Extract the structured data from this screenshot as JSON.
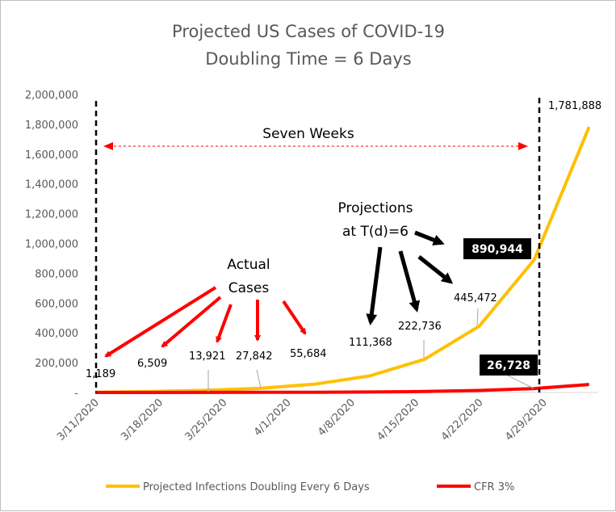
{
  "chart_data": {
    "type": "line",
    "title": "Projected US Cases of COVID-19",
    "subtitle": "Doubling Time = 6 Days",
    "xlabel": "",
    "ylabel": "",
    "x_tick_labels": [
      "3/11/2020",
      "3/18/2020",
      "3/25/2020",
      "4/1/2020",
      "4/8/2020",
      "4/15/2020",
      "4/22/2020",
      "4/29/2020"
    ],
    "y_tick_labels": [
      "-",
      "200,000",
      "400,000",
      "600,000",
      "800,000",
      "1,000,000",
      "1,200,000",
      "1,400,000",
      "1,600,000",
      "1,800,000",
      "2,000,000"
    ],
    "ylim": [
      0,
      2000000
    ],
    "xlim": [
      "3/11/2020",
      "5/5/2020"
    ],
    "grid": false,
    "legend_position": "bottom",
    "series": [
      {
        "name": "Projected Infections Doubling Every 6 Days",
        "color": "#FFC000",
        "points": [
          {
            "x": "3/11/2020",
            "y": 1189
          },
          {
            "x": "3/17/2020",
            "y": 6509
          },
          {
            "x": "3/23/2020",
            "y": 13921
          },
          {
            "x": "3/29/2020",
            "y": 27842
          },
          {
            "x": "4/4/2020",
            "y": 55684
          },
          {
            "x": "4/10/2020",
            "y": 111368
          },
          {
            "x": "4/16/2020",
            "y": 222736
          },
          {
            "x": "4/22/2020",
            "y": 445472
          },
          {
            "x": "4/28/2020",
            "y": 890944
          },
          {
            "x": "5/4/2020",
            "y": 1781888
          }
        ]
      },
      {
        "name": "CFR 3%",
        "color": "#FF0000",
        "points": [
          {
            "x": "3/11/2020",
            "y": 36
          },
          {
            "x": "3/17/2020",
            "y": 195
          },
          {
            "x": "3/23/2020",
            "y": 418
          },
          {
            "x": "3/29/2020",
            "y": 835
          },
          {
            "x": "4/4/2020",
            "y": 1671
          },
          {
            "x": "4/10/2020",
            "y": 3341
          },
          {
            "x": "4/16/2020",
            "y": 6682
          },
          {
            "x": "4/22/2020",
            "y": 13364
          },
          {
            "x": "4/28/2020",
            "y": 26728
          },
          {
            "x": "5/4/2020",
            "y": 53457
          }
        ]
      }
    ],
    "data_labels": [
      {
        "text": "1,189",
        "series": 0,
        "index": 0
      },
      {
        "text": "6,509",
        "series": 0,
        "index": 1
      },
      {
        "text": "13,921",
        "series": 0,
        "index": 2
      },
      {
        "text": "27,842",
        "series": 0,
        "index": 3
      },
      {
        "text": "55,684",
        "series": 0,
        "index": 4
      },
      {
        "text": "111,368",
        "series": 0,
        "index": 5
      },
      {
        "text": "222,736",
        "series": 0,
        "index": 6
      },
      {
        "text": "445,472",
        "series": 0,
        "index": 7
      },
      {
        "text": "890,944",
        "series": 0,
        "index": 8,
        "boxed": true
      },
      {
        "text": "1,781,888",
        "series": 0,
        "index": 9
      },
      {
        "text": "26,728",
        "series": 1,
        "index": 8,
        "boxed": true
      }
    ],
    "annotations": {
      "seven_weeks": "Seven Weeks",
      "actual_cases_line1": "Actual",
      "actual_cases_line2": "Cases",
      "projections_line1": "Projections",
      "projections_line2": "at T(d)=6",
      "vertical_markers": [
        "3/11/2020",
        "4/29/2020"
      ]
    }
  }
}
